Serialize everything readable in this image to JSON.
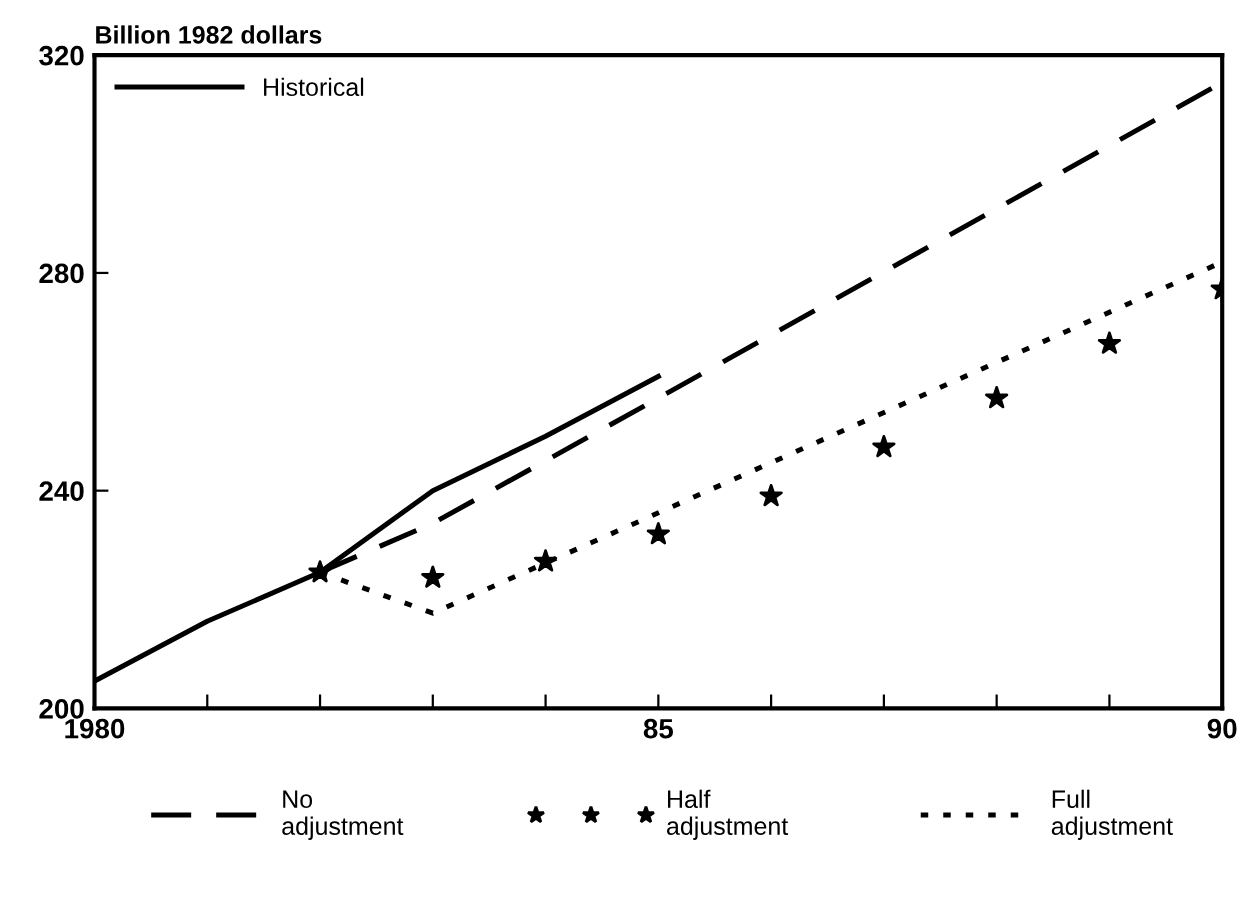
{
  "chart_data": {
    "type": "line",
    "ylabel": "Billion 1982 dollars",
    "xlim": [
      1980,
      1990
    ],
    "ylim": [
      200,
      320
    ],
    "xticks": [
      {
        "value": 1980,
        "label": "1980"
      },
      {
        "value": 1981,
        "label": null
      },
      {
        "value": 1982,
        "label": null
      },
      {
        "value": 1983,
        "label": null
      },
      {
        "value": 1984,
        "label": null
      },
      {
        "value": 1985,
        "label": "85"
      },
      {
        "value": 1986,
        "label": null
      },
      {
        "value": 1987,
        "label": null
      },
      {
        "value": 1988,
        "label": null
      },
      {
        "value": 1989,
        "label": null
      },
      {
        "value": 1990,
        "label": "90"
      }
    ],
    "yticks": [
      200,
      240,
      280,
      320
    ],
    "grid": false,
    "legend": "bottom",
    "series": [
      {
        "name": "Historical",
        "color": "#000000",
        "line_style": "solid",
        "x": [
          1980,
          1981,
          1982,
          1983,
          1984,
          1985
        ],
        "values": [
          205,
          216,
          225,
          240,
          250,
          261
        ]
      },
      {
        "name": "No\nadjustment",
        "color": "#000000",
        "line_style": "dashed",
        "x": [
          1982,
          1983,
          1985,
          1990
        ],
        "values": [
          225,
          234,
          257,
          315
        ]
      },
      {
        "name": "Half\nadjustment",
        "type": "scatter",
        "marker": "star",
        "color": "#000000",
        "x": [
          1982,
          1983,
          1984,
          1985,
          1986,
          1987,
          1988,
          1989,
          1990
        ],
        "values": [
          225,
          224,
          227,
          232,
          239,
          248,
          257,
          267,
          277
        ]
      },
      {
        "name": "Full\nadjustment",
        "color": "#000000",
        "line_style": "dotted",
        "x": [
          1982,
          1983,
          1990
        ],
        "values": [
          225,
          217.5,
          282
        ]
      }
    ]
  }
}
